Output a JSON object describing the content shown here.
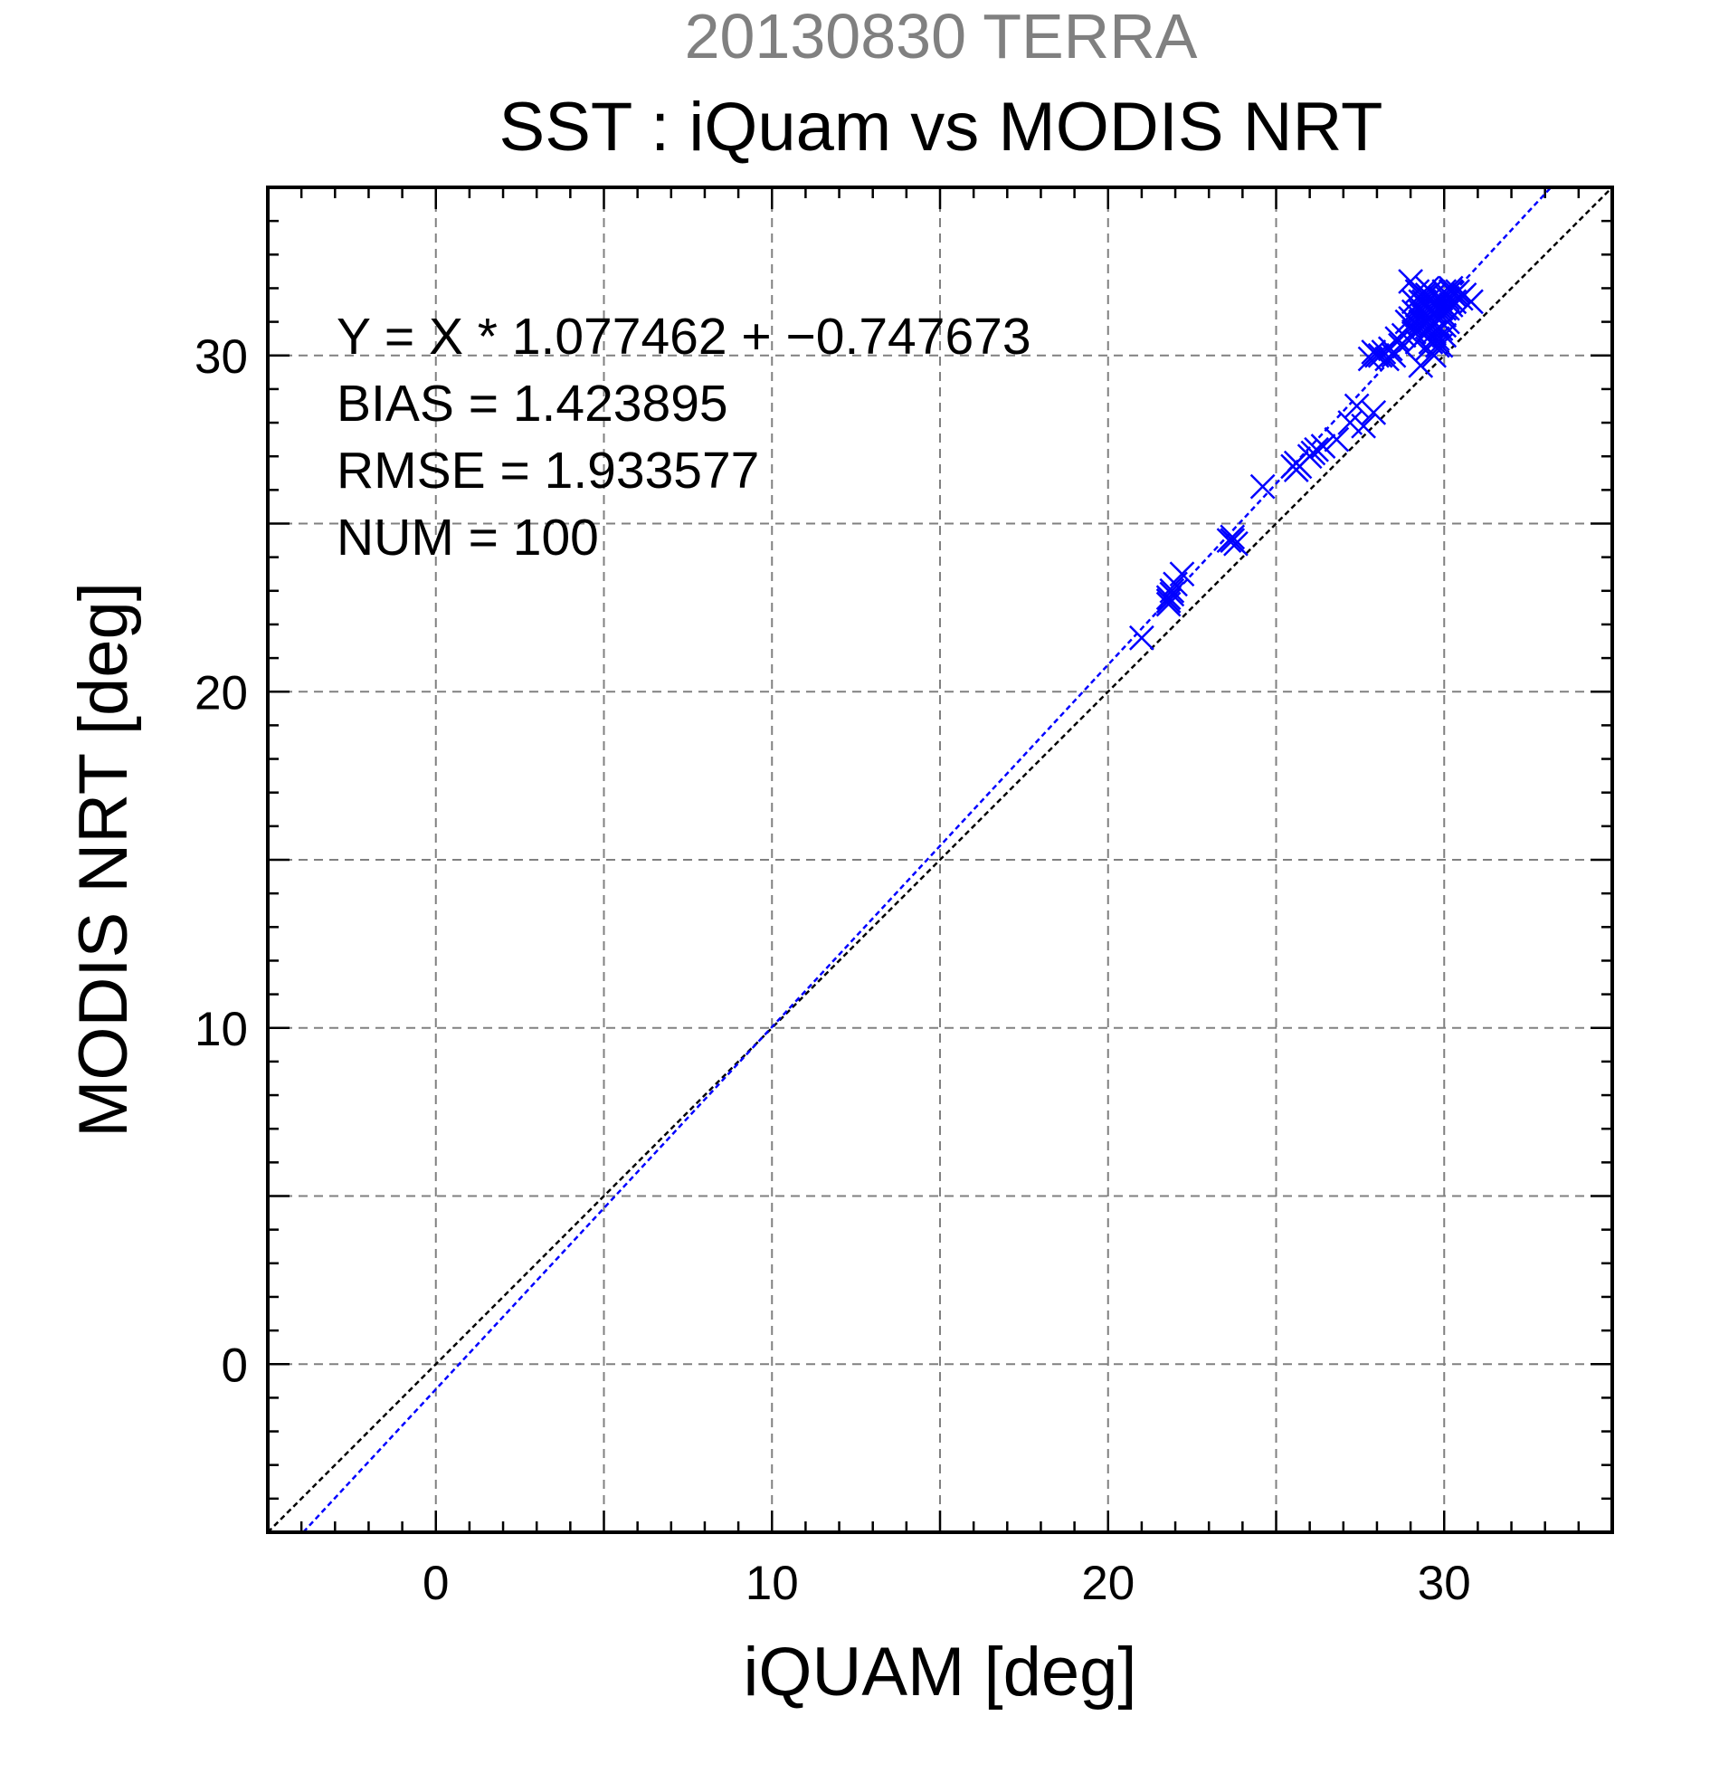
{
  "chart_data": {
    "type": "scatter",
    "supertitle": "20130830 TERRA",
    "title": "SST : iQuam vs MODIS NRT",
    "xlabel": "iQUAM [deg]",
    "ylabel": "MODIS NRT [deg]",
    "xlim": [
      -5,
      35
    ],
    "ylim": [
      -5,
      35
    ],
    "x_major_ticks": [
      0,
      10,
      20,
      30
    ],
    "y_major_ticks": [
      0,
      10,
      20,
      30
    ],
    "x_tick_labels": [
      "0",
      "10",
      "20",
      "30"
    ],
    "y_tick_labels": [
      "0",
      "10",
      "20",
      "30"
    ],
    "grid_step": 5,
    "minor_tick_step": 1,
    "grid": true,
    "colors": {
      "points": "#0000ff",
      "fit_line": "#0000ff",
      "one_to_one_line": "#000000",
      "supertitle": "#808080"
    },
    "annotations": [
      "Y = X * 1.077462 + −0.747673",
      "BIAS = 1.423895",
      "RMSE = 1.933577",
      "NUM = 100"
    ],
    "fit": {
      "slope": 1.077462,
      "intercept": -0.747673
    },
    "reference_line": {
      "slope": 1,
      "intercept": 0
    },
    "points": [
      [
        21.0,
        21.6
      ],
      [
        21.8,
        22.7
      ],
      [
        21.9,
        22.9
      ],
      [
        21.8,
        22.8
      ],
      [
        22.0,
        23.2
      ],
      [
        22.2,
        23.5
      ],
      [
        21.9,
        23.0
      ],
      [
        23.6,
        24.5
      ],
      [
        23.8,
        24.4
      ],
      [
        23.7,
        24.6
      ],
      [
        24.6,
        26.1
      ],
      [
        25.5,
        26.7
      ],
      [
        25.6,
        26.8
      ],
      [
        25.7,
        26.7
      ],
      [
        26.0,
        27.0
      ],
      [
        26.2,
        27.2
      ],
      [
        26.4,
        27.3
      ],
      [
        26.8,
        27.5
      ],
      [
        27.2,
        28.0
      ],
      [
        27.4,
        28.5
      ],
      [
        27.6,
        27.9
      ],
      [
        27.9,
        28.3
      ],
      [
        27.8,
        29.9
      ],
      [
        27.9,
        30.1
      ],
      [
        28.0,
        30.0
      ],
      [
        28.2,
        30.1
      ],
      [
        28.3,
        29.9
      ],
      [
        28.4,
        30.2
      ],
      [
        28.5,
        30.0
      ],
      [
        28.6,
        30.5
      ],
      [
        28.7,
        30.3
      ],
      [
        28.8,
        30.6
      ],
      [
        28.9,
        31.0
      ],
      [
        29.0,
        30.9
      ],
      [
        29.0,
        32.2
      ],
      [
        29.1,
        31.3
      ],
      [
        29.1,
        30.7
      ],
      [
        29.2,
        31.5
      ],
      [
        29.2,
        31.9
      ],
      [
        29.3,
        30.8
      ],
      [
        29.3,
        31.6
      ],
      [
        29.3,
        29.7
      ],
      [
        29.4,
        31.2
      ],
      [
        29.4,
        31.8
      ],
      [
        29.4,
        30.6
      ],
      [
        29.5,
        31.4
      ],
      [
        29.5,
        30.2
      ],
      [
        29.5,
        31.0
      ],
      [
        29.6,
        31.7
      ],
      [
        29.6,
        30.9
      ],
      [
        29.6,
        30.4
      ],
      [
        29.7,
        31.3
      ],
      [
        29.7,
        30.7
      ],
      [
        29.7,
        31.8
      ],
      [
        29.8,
        31.5
      ],
      [
        29.8,
        30.5
      ],
      [
        29.8,
        31.1
      ],
      [
        29.9,
        30.8
      ],
      [
        29.9,
        31.6
      ],
      [
        29.9,
        30.3
      ],
      [
        30.0,
        31.9
      ],
      [
        30.0,
        31.2
      ],
      [
        30.0,
        30.9
      ],
      [
        30.1,
        31.7
      ],
      [
        30.1,
        31.4
      ],
      [
        30.2,
        32.0
      ],
      [
        30.2,
        31.5
      ],
      [
        30.3,
        31.8
      ],
      [
        30.3,
        31.6
      ],
      [
        30.4,
        31.9
      ],
      [
        30.5,
        31.7
      ],
      [
        30.6,
        31.8
      ],
      [
        30.8,
        31.6
      ],
      [
        29.5,
        32.0
      ],
      [
        29.4,
        30.9
      ],
      [
        29.6,
        31.1
      ],
      [
        29.2,
        30.4
      ],
      [
        29.0,
        31.1
      ],
      [
        29.9,
        31.7
      ],
      [
        30.0,
        30.6
      ],
      [
        29.7,
        30.0
      ],
      [
        29.8,
        30.3
      ],
      [
        29.3,
        31.3
      ],
      [
        29.5,
        30.7
      ],
      [
        29.6,
        31.9
      ],
      [
        30.1,
        31.0
      ],
      [
        29.2,
        31.2
      ],
      [
        29.4,
        31.6
      ],
      [
        29.9,
        31.4
      ],
      [
        30.2,
        31.9
      ],
      [
        28.1,
        30.0
      ],
      [
        25.6,
        26.6
      ],
      [
        21.8,
        22.6
      ],
      [
        23.7,
        24.5
      ],
      [
        26.1,
        27.1
      ],
      [
        29.1,
        31.6
      ],
      [
        29.3,
        31.0
      ],
      [
        29.7,
        31.5
      ],
      [
        30.0,
        31.4
      ],
      [
        29.5,
        31.8
      ]
    ]
  }
}
